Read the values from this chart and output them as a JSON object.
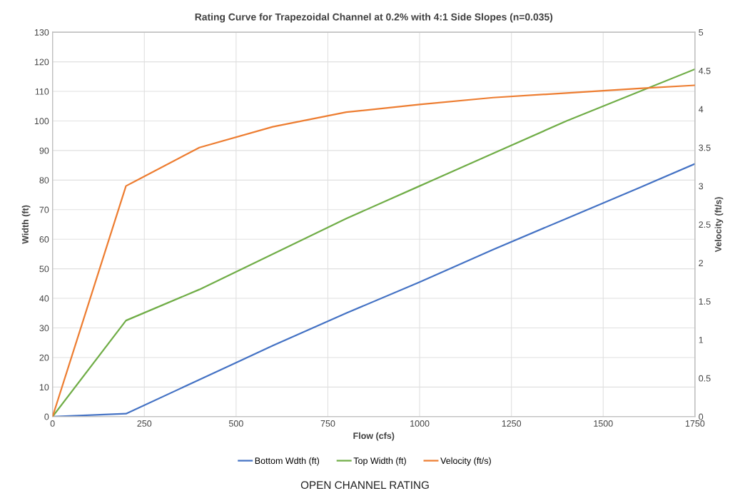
{
  "chart_data": {
    "type": "line",
    "title": "Rating Curve for Trapezoidal Channel at 0.2% with 4:1 Side Slopes (n=0.035)",
    "xlabel": "Flow (cfs)",
    "ylabel": "Width (ft)",
    "y2label": "Velocity (ft/s)",
    "x": [
      0,
      200,
      400,
      600,
      800,
      1000,
      1200,
      1400,
      1600,
      1750
    ],
    "series": [
      {
        "name": "Bottom Wdth (ft)",
        "color": "#4472c4",
        "values": [
          0,
          1,
          12.5,
          24,
          35,
          45.5,
          56.5,
          67,
          77.5,
          85.5
        ]
      },
      {
        "name": "Top Width (ft)",
        "color": "#70ad47",
        "values": [
          0,
          32.5,
          43,
          55,
          67,
          78,
          89,
          100,
          110,
          117.5
        ]
      },
      {
        "name": "Velocity (ft/s)",
        "color": "#ed7d31",
        "axis": "y2",
        "values": [
          0,
          3.0,
          3.5,
          3.77,
          3.96,
          4.06,
          4.15,
          4.21,
          4.27,
          4.31
        ]
      }
    ],
    "xlim": [
      0,
      1750
    ],
    "xticks": [
      0,
      250,
      500,
      750,
      1000,
      1250,
      1500,
      1750
    ],
    "ylim": [
      0,
      130
    ],
    "yticks": [
      0,
      10,
      20,
      30,
      40,
      50,
      60,
      70,
      80,
      90,
      100,
      110,
      120,
      130
    ],
    "y2lim": [
      0,
      5
    ],
    "y2ticks": [
      0,
      0.5,
      1,
      1.5,
      2,
      2.5,
      3,
      3.5,
      4,
      4.5,
      5
    ],
    "grid": true,
    "legend": "bottom",
    "marker": "none",
    "line_style": "solid",
    "annotations": [
      "OPEN CHANNEL RATING"
    ]
  }
}
